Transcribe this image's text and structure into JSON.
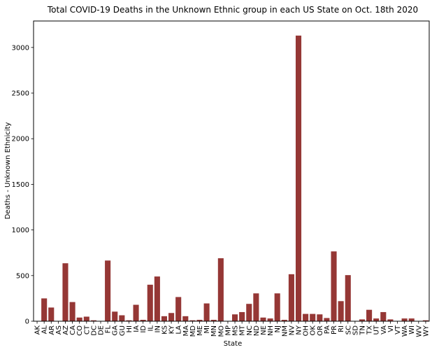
{
  "chart_data": {
    "type": "bar",
    "title": "Total COVID-19 Deaths in the Unknown Ethnic group in each US State on Oct. 18th 2020",
    "xlabel": "State",
    "ylabel": "Deaths - Unknown Ethnicity",
    "ylim": [
      0,
      3290
    ],
    "yticks": [
      0,
      500,
      1000,
      1500,
      2000,
      2500,
      3000
    ],
    "grid": false,
    "bar_color": "#953735",
    "categories": [
      "AK",
      "AL",
      "AR",
      "AS",
      "AZ",
      "CA",
      "CO",
      "CT",
      "DC",
      "DE",
      "FL",
      "GA",
      "GU",
      "HI",
      "IA",
      "ID",
      "IL",
      "IN",
      "KS",
      "KY",
      "LA",
      "MA",
      "MD",
      "ME",
      "MI",
      "MN",
      "MO",
      "MP",
      "MS",
      "MT",
      "NC",
      "ND",
      "NE",
      "NH",
      "NJ",
      "NM",
      "NV",
      "NY",
      "OH",
      "OK",
      "OR",
      "PA",
      "PR",
      "RI",
      "SC",
      "SD",
      "TN",
      "TX",
      "UT",
      "VA",
      "VI",
      "VT",
      "WA",
      "WI",
      "WV",
      "WY"
    ],
    "values": [
      0,
      250,
      150,
      0,
      635,
      210,
      40,
      50,
      10,
      0,
      665,
      105,
      65,
      10,
      180,
      15,
      400,
      490,
      55,
      90,
      265,
      55,
      10,
      15,
      195,
      15,
      690,
      0,
      75,
      100,
      190,
      305,
      40,
      30,
      305,
      15,
      515,
      3130,
      80,
      80,
      75,
      35,
      765,
      220,
      505,
      0,
      20,
      125,
      30,
      100,
      20,
      0,
      30,
      30,
      0,
      10
    ]
  }
}
